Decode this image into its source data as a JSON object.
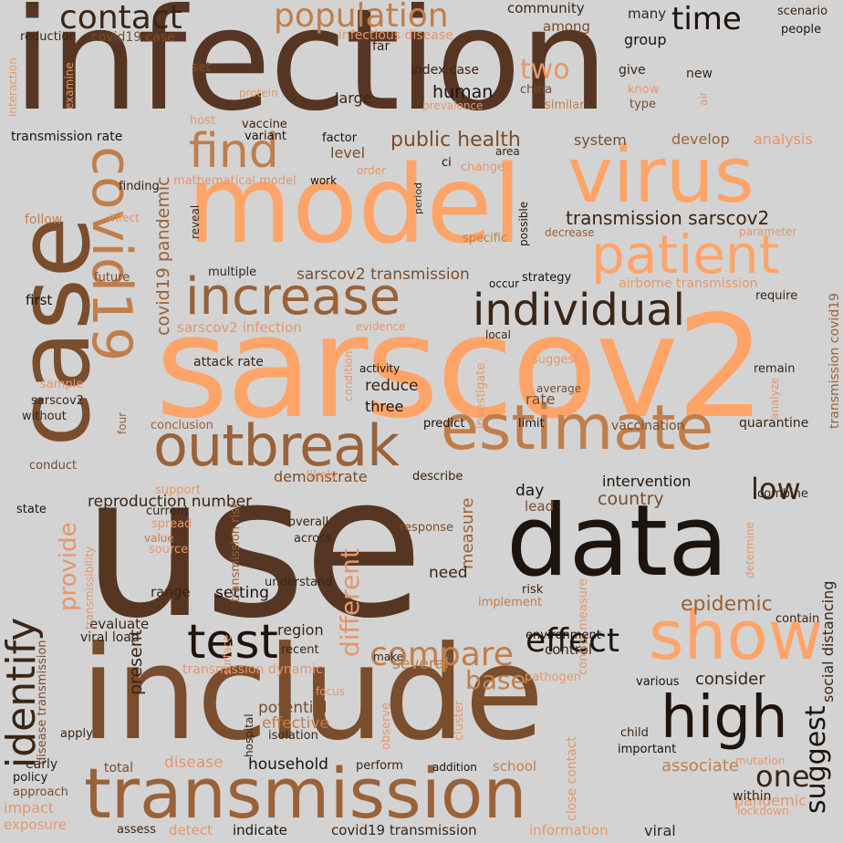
{
  "colors": {
    "background": "#d3d3d3",
    "palette": [
      "#1e140e",
      "#3a2616",
      "#563622",
      "#7a4d2c",
      "#9a6238",
      "#c17e4a",
      "#e5966a",
      "#ffa468"
    ]
  },
  "words": [
    {
      "text": "infection",
      "color": "#563622"
    },
    {
      "text": "sarscov2",
      "color": "#ffa468"
    },
    {
      "text": "use",
      "color": "#563622"
    },
    {
      "text": "model",
      "color": "#ffa468"
    },
    {
      "text": "include",
      "color": "#7a4d2c"
    },
    {
      "text": "case",
      "color": "#7a4d2c"
    },
    {
      "text": "data",
      "color": "#1e140e"
    },
    {
      "text": "transmission",
      "color": "#9a6238"
    },
    {
      "text": "virus",
      "color": "#ffa468"
    },
    {
      "text": "estimate",
      "color": "#c17e4a"
    },
    {
      "text": "outbreak",
      "color": "#9a6238"
    },
    {
      "text": "increase",
      "color": "#9a6238"
    },
    {
      "text": "patient",
      "color": "#ffa468"
    },
    {
      "text": "show",
      "color": "#ffa468"
    },
    {
      "text": "high",
      "color": "#1e140e"
    },
    {
      "text": "covid19",
      "color": "#c17e4a"
    },
    {
      "text": "identify",
      "color": "#3a2616"
    },
    {
      "text": "find",
      "color": "#c17e4a"
    },
    {
      "text": "individual",
      "color": "#3a2616"
    },
    {
      "text": "test",
      "color": "#1e140e"
    },
    {
      "text": "contact",
      "color": "#3a2616"
    },
    {
      "text": "population",
      "color": "#c17e4a"
    },
    {
      "text": "compare",
      "color": "#c17e4a"
    },
    {
      "text": "effect",
      "color": "#1e140e"
    },
    {
      "text": "time",
      "color": "#1e140e"
    },
    {
      "text": "two",
      "color": "#e5966a"
    },
    {
      "text": "low",
      "color": "#3a2616"
    },
    {
      "text": "provide",
      "color": "#e5966a"
    },
    {
      "text": "different",
      "color": "#e5966a"
    },
    {
      "text": "base",
      "color": "#c17e4a"
    },
    {
      "text": "one",
      "color": "#3a2616"
    },
    {
      "text": "suggest",
      "color": "#1e140e"
    },
    {
      "text": "epidemic",
      "color": "#9a6238"
    },
    {
      "text": "transmission sarscov2",
      "color": "#3a2616"
    },
    {
      "text": "public health",
      "color": "#7a4d2c"
    },
    {
      "text": "covid19 pandemic",
      "color": "#9a6238"
    },
    {
      "text": "sarscov2 transmission",
      "color": "#7a4d2c"
    },
    {
      "text": "reproduction number",
      "color": "#3a2616"
    },
    {
      "text": "human",
      "color": "#1e140e"
    },
    {
      "text": "country",
      "color": "#7a4d2c"
    },
    {
      "text": "measure",
      "color": "#9a6238"
    },
    {
      "text": "consider",
      "color": "#3a2616"
    },
    {
      "text": "present",
      "color": "#3a2616"
    },
    {
      "text": "household",
      "color": "#1e140e"
    },
    {
      "text": "associate",
      "color": "#c17e4a"
    },
    {
      "text": "pandemic",
      "color": "#e5966a"
    },
    {
      "text": "covid19 transmission",
      "color": "#3a2616"
    },
    {
      "text": "information",
      "color": "#e5966a"
    },
    {
      "text": "detect",
      "color": "#e5966a"
    },
    {
      "text": "indicate",
      "color": "#1e140e"
    },
    {
      "text": "viral",
      "color": "#3a2616"
    },
    {
      "text": "exposure",
      "color": "#e5966a"
    },
    {
      "text": "impact",
      "color": "#e5966a"
    },
    {
      "text": "disease",
      "color": "#e5966a"
    },
    {
      "text": "potential",
      "color": "#7a4d2c"
    },
    {
      "text": "effective",
      "color": "#c17e4a"
    },
    {
      "text": "several",
      "color": "#c17e4a"
    },
    {
      "text": "region",
      "color": "#3a2616"
    },
    {
      "text": "setting",
      "color": "#1e140e"
    },
    {
      "text": "need",
      "color": "#3a2616"
    },
    {
      "text": "day",
      "color": "#1e140e"
    },
    {
      "text": "lead",
      "color": "#7a4d2c"
    },
    {
      "text": "intervention",
      "color": "#1e140e"
    },
    {
      "text": "demonstrate",
      "color": "#7a4d2c"
    },
    {
      "text": "three",
      "color": "#1e140e"
    },
    {
      "text": "reduce",
      "color": "#3a2616"
    },
    {
      "text": "rate",
      "color": "#7a4d2c"
    },
    {
      "text": "level",
      "color": "#7a4d2c"
    },
    {
      "text": "system",
      "color": "#7a4d2c"
    },
    {
      "text": "develop",
      "color": "#9a6238"
    },
    {
      "text": "analysis",
      "color": "#e5966a"
    },
    {
      "text": "group",
      "color": "#1e140e"
    },
    {
      "text": "community",
      "color": "#3a2616"
    },
    {
      "text": "many",
      "color": "#3a2616"
    },
    {
      "text": "among",
      "color": "#7a4d2c"
    },
    {
      "text": "large",
      "color": "#3a2616"
    },
    {
      "text": "first",
      "color": "#1e140e"
    },
    {
      "text": "range",
      "color": "#3a2616"
    },
    {
      "text": "evaluate",
      "color": "#3a2616"
    },
    {
      "text": "control",
      "color": "#3a2616"
    },
    {
      "text": "quarantine",
      "color": "#3a2616"
    },
    {
      "text": "vaccination",
      "color": "#7a4d2c"
    },
    {
      "text": "social distancing",
      "color": "#3a2616"
    },
    {
      "text": "transmission covid19",
      "color": "#9a6238"
    },
    {
      "text": "attack rate",
      "color": "#3a2616"
    },
    {
      "text": "transmission rate",
      "color": "#1e140e"
    },
    {
      "text": "index case",
      "color": "#3a2616"
    },
    {
      "text": "covid19 case",
      "color": "#7a4d2c"
    },
    {
      "text": "infectious disease",
      "color": "#e5966a"
    },
    {
      "text": "mathematical model",
      "color": "#e5966a"
    },
    {
      "text": "sarscov2 infection",
      "color": "#e5966a"
    },
    {
      "text": "airborne transmission",
      "color": "#e5966a"
    },
    {
      "text": "viral load",
      "color": "#3a2616"
    },
    {
      "text": "transmission dynamic",
      "color": "#e5966a"
    },
    {
      "text": "close contact",
      "color": "#e5966a"
    },
    {
      "text": "control measure",
      "color": "#e5966a"
    },
    {
      "text": "transmission risk",
      "color": "#9a6238"
    },
    {
      "text": "disease transmission",
      "color": "#7a4d2c"
    },
    {
      "text": "scenario",
      "color": "#3a2616"
    },
    {
      "text": "people",
      "color": "#1e140e"
    },
    {
      "text": "reduction",
      "color": "#3a2616"
    },
    {
      "text": "interaction",
      "color": "#e5966a"
    },
    {
      "text": "examine",
      "color": "#e5966a"
    },
    {
      "text": "far",
      "color": "#3a2616"
    },
    {
      "text": "set",
      "color": "#7a4d2c"
    },
    {
      "text": "give",
      "color": "#3a2616"
    },
    {
      "text": "new",
      "color": "#3a2616"
    },
    {
      "text": "know",
      "color": "#e5966a"
    },
    {
      "text": "type",
      "color": "#7a4d2c"
    },
    {
      "text": "china",
      "color": "#7a4d2c"
    },
    {
      "text": "protein",
      "color": "#e5966a"
    },
    {
      "text": "prevalence",
      "color": "#e5966a"
    },
    {
      "text": "similar",
      "color": "#c17e4a"
    },
    {
      "text": "air",
      "color": "#e5966a"
    },
    {
      "text": "host",
      "color": "#e5966a"
    },
    {
      "text": "vaccine",
      "color": "#3a2616"
    },
    {
      "text": "variant",
      "color": "#1e140e"
    },
    {
      "text": "factor",
      "color": "#1e140e"
    },
    {
      "text": "area",
      "color": "#3a2616"
    },
    {
      "text": "ci",
      "color": "#1e140e"
    },
    {
      "text": "change",
      "color": "#e5966a"
    },
    {
      "text": "order",
      "color": "#e5966a"
    },
    {
      "text": "work",
      "color": "#1e140e"
    },
    {
      "text": "finding",
      "color": "#3a2616"
    },
    {
      "text": "follow",
      "color": "#c17e4a"
    },
    {
      "text": "infect",
      "color": "#e5966a"
    },
    {
      "text": "period",
      "color": "#3a2616"
    },
    {
      "text": "possible",
      "color": "#1e140e"
    },
    {
      "text": "specific",
      "color": "#c17e4a"
    },
    {
      "text": "decrease",
      "color": "#9a6238"
    },
    {
      "text": "parameter",
      "color": "#e5966a"
    },
    {
      "text": "strategy",
      "color": "#1e140e"
    },
    {
      "text": "reveal",
      "color": "#3a2616"
    },
    {
      "text": "future",
      "color": "#7a4d2c"
    },
    {
      "text": "multiple",
      "color": "#3a2616"
    },
    {
      "text": "occur",
      "color": "#1e140e"
    },
    {
      "text": "require",
      "color": "#3a2616"
    },
    {
      "text": "evidence",
      "color": "#e5966a"
    },
    {
      "text": "local",
      "color": "#3a2616"
    },
    {
      "text": "suggest",
      "color": "#e5966a"
    },
    {
      "text": "remain",
      "color": "#3a2616"
    },
    {
      "text": "analyze",
      "color": "#e5966a"
    },
    {
      "text": "activity",
      "color": "#1e140e"
    },
    {
      "text": "investigate",
      "color": "#e5966a"
    },
    {
      "text": "average",
      "color": "#7a4d2c"
    },
    {
      "text": "condition",
      "color": "#e5966a"
    },
    {
      "text": "sample",
      "color": "#e5966a"
    },
    {
      "text": "sarscov2",
      "color": "#3a2616"
    },
    {
      "text": "without",
      "color": "#3a2616"
    },
    {
      "text": "four",
      "color": "#9a6238"
    },
    {
      "text": "conclusion",
      "color": "#9a6238"
    },
    {
      "text": "predict",
      "color": "#1e140e"
    },
    {
      "text": "limit",
      "color": "#1e140e"
    },
    {
      "text": "conduct",
      "color": "#7a4d2c"
    },
    {
      "text": "likely",
      "color": "#e5966a"
    },
    {
      "text": "describe",
      "color": "#3a2616"
    },
    {
      "text": "support",
      "color": "#e5966a"
    },
    {
      "text": "combine",
      "color": "#3a2616"
    },
    {
      "text": "state",
      "color": "#1e140e"
    },
    {
      "text": "current",
      "color": "#3a2616"
    },
    {
      "text": "spread",
      "color": "#e5966a"
    },
    {
      "text": "overall",
      "color": "#3a2616"
    },
    {
      "text": "across",
      "color": "#3a2616"
    },
    {
      "text": "response",
      "color": "#7a4d2c"
    },
    {
      "text": "transmissibility",
      "color": "#e5966a"
    },
    {
      "text": "value",
      "color": "#c17e4a"
    },
    {
      "text": "source",
      "color": "#e5966a"
    },
    {
      "text": "determine",
      "color": "#e5966a"
    },
    {
      "text": "understand",
      "color": "#3a2616"
    },
    {
      "text": "risk",
      "color": "#3a2616"
    },
    {
      "text": "surface",
      "color": "#e5966a"
    },
    {
      "text": "implement",
      "color": "#c17e4a"
    },
    {
      "text": "contain",
      "color": "#3a2616"
    },
    {
      "text": "environment",
      "color": "#1e140e"
    },
    {
      "text": "make",
      "color": "#3a2616"
    },
    {
      "text": "pathogen",
      "color": "#e5966a"
    },
    {
      "text": "recent",
      "color": "#3a2616"
    },
    {
      "text": "observe",
      "color": "#e5966a"
    },
    {
      "text": "cluster",
      "color": "#e5966a"
    },
    {
      "text": "various",
      "color": "#1e140e"
    },
    {
      "text": "focus",
      "color": "#e5966a"
    },
    {
      "text": "hospital",
      "color": "#3a2616"
    },
    {
      "text": "isolation",
      "color": "#3a2616"
    },
    {
      "text": "apply",
      "color": "#3a2616"
    },
    {
      "text": "child",
      "color": "#3a2616"
    },
    {
      "text": "important",
      "color": "#1e140e"
    },
    {
      "text": "mutation",
      "color": "#e5966a"
    },
    {
      "text": "within",
      "color": "#3a2616"
    },
    {
      "text": "lockdown",
      "color": "#e5966a"
    },
    {
      "text": "early",
      "color": "#3a2616"
    },
    {
      "text": "total",
      "color": "#7a4d2c"
    },
    {
      "text": "perform",
      "color": "#3a2616"
    },
    {
      "text": "addition",
      "color": "#1e140e"
    },
    {
      "text": "school",
      "color": "#c17e4a"
    },
    {
      "text": "policy",
      "color": "#1e140e"
    },
    {
      "text": "approach",
      "color": "#7a4d2c"
    },
    {
      "text": "assess",
      "color": "#3a2616"
    }
  ]
}
